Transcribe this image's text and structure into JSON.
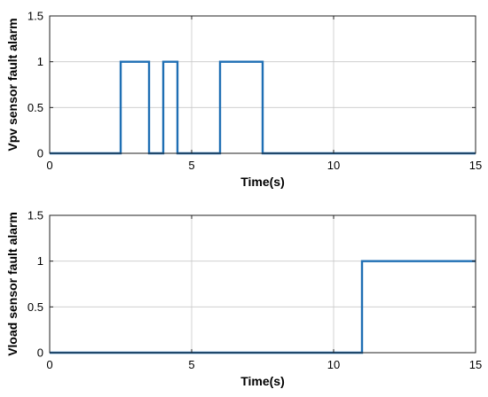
{
  "chart_data": [
    {
      "type": "line",
      "xlabel": "Time(s)",
      "ylabel": "Vpv sensor fault alarm",
      "xlim": [
        0,
        15
      ],
      "ylim": [
        0,
        1.5
      ],
      "xticks": [
        0,
        5,
        10,
        15
      ],
      "xtick_labels": [
        "0",
        "5",
        "10",
        "15"
      ],
      "yticks": [
        0,
        0.5,
        1,
        1.5
      ],
      "ytick_labels": [
        "0",
        "0.5",
        "1",
        "1.5"
      ],
      "grid": true,
      "series": [
        {
          "color": "#1f6fb4",
          "step": true,
          "x": [
            0,
            2.5,
            2.5,
            3.5,
            3.5,
            4.0,
            4.0,
            4.5,
            4.5,
            6.0,
            6.0,
            7.5,
            7.5,
            15
          ],
          "y": [
            0,
            0,
            1,
            1,
            0,
            0,
            1,
            1,
            0,
            0,
            1,
            1,
            0,
            0
          ]
        }
      ]
    },
    {
      "type": "line",
      "xlabel": "Time(s)",
      "ylabel": "Vload sensor fault alarm",
      "xlim": [
        0,
        15
      ],
      "ylim": [
        0,
        1.5
      ],
      "xticks": [
        0,
        5,
        10,
        15
      ],
      "xtick_labels": [
        "0",
        "5",
        "10",
        "15"
      ],
      "yticks": [
        0,
        0.5,
        1,
        1.5
      ],
      "ytick_labels": [
        "0",
        "0.5",
        "1",
        "1.5"
      ],
      "grid": true,
      "series": [
        {
          "color": "#1f6fb4",
          "step": true,
          "x": [
            0,
            11,
            11,
            15
          ],
          "y": [
            0,
            0,
            1,
            1
          ]
        }
      ]
    }
  ]
}
